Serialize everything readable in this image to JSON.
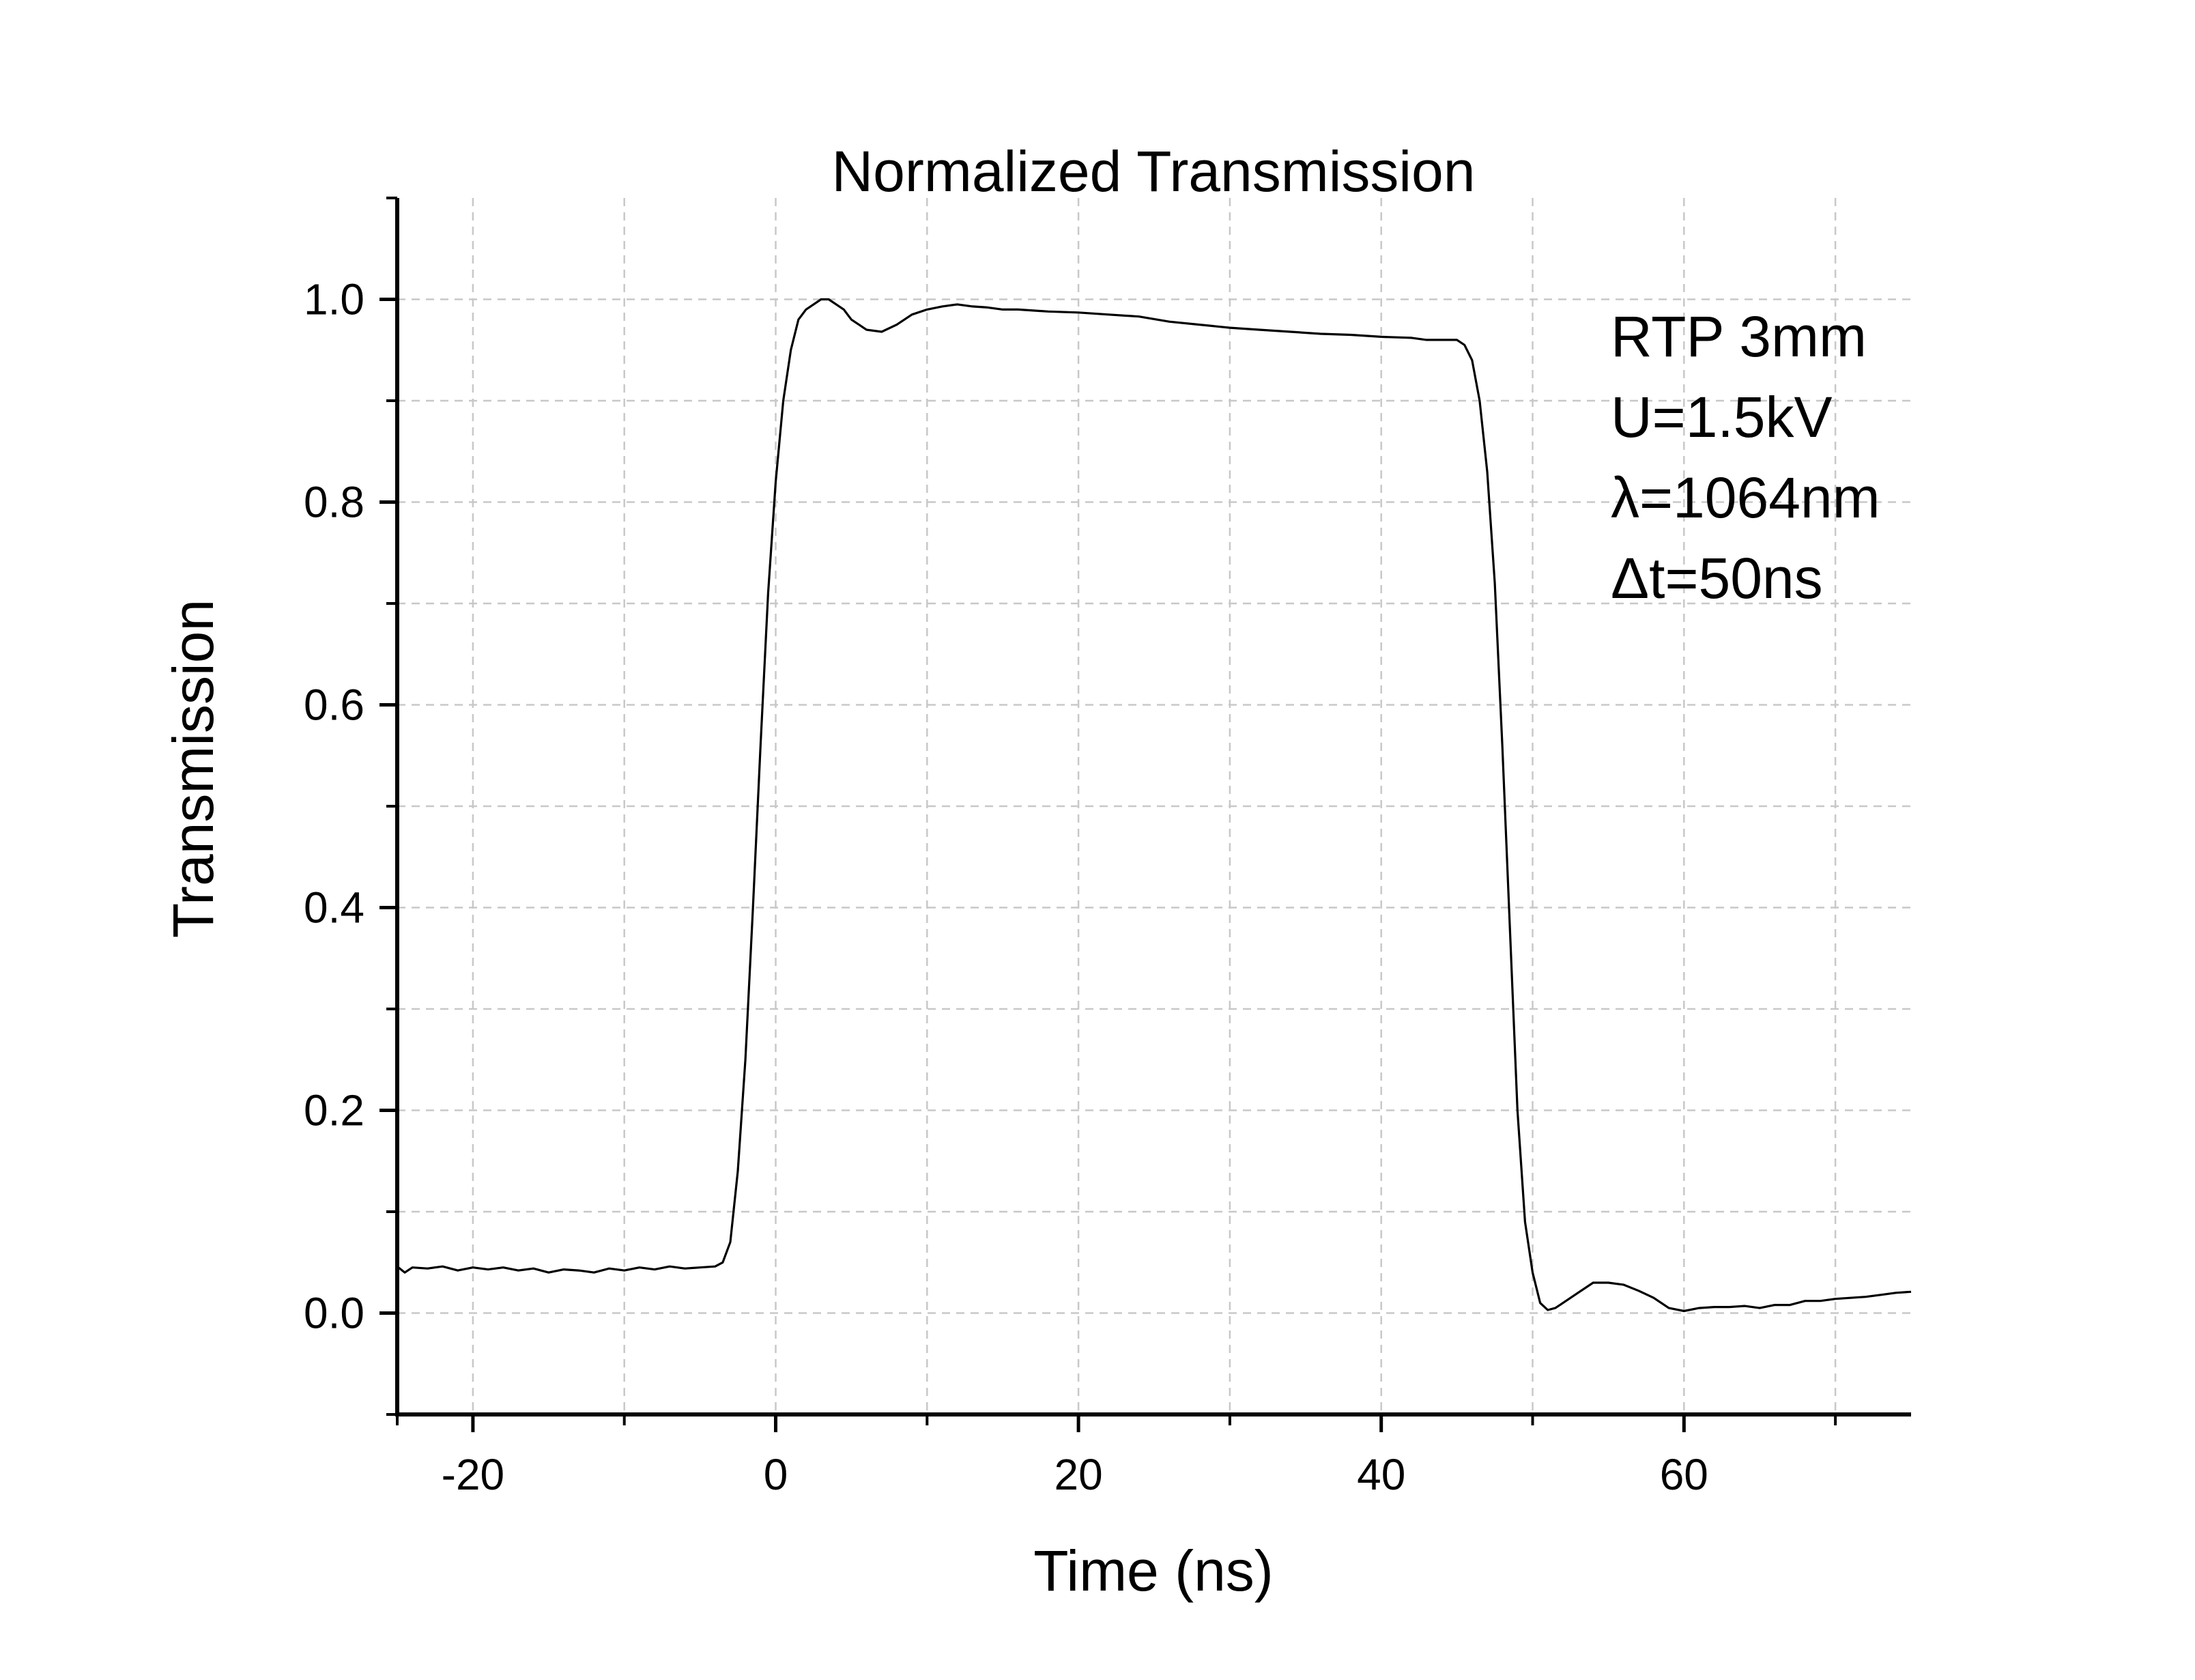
{
  "chart_data": {
    "type": "line",
    "title": "Normalized Transmission",
    "xlabel": "Time (ns)",
    "ylabel": "Transmission",
    "xlim": [
      -25,
      75
    ],
    "ylim": [
      -0.1,
      1.1
    ],
    "x_major_ticks": [
      -20,
      0,
      20,
      40,
      60
    ],
    "x_minor_ticks": [
      -10,
      10,
      30,
      50,
      70
    ],
    "x_tick_labels": [
      "-20",
      "0",
      "20",
      "40",
      "60"
    ],
    "y_major_ticks": [
      0.0,
      0.2,
      0.4,
      0.6,
      0.8,
      1.0
    ],
    "y_minor_ticks": [
      -0.1,
      0.1,
      0.3,
      0.5,
      0.7,
      0.9,
      1.1
    ],
    "y_tick_labels": [
      "0.0",
      "0.2",
      "0.4",
      "0.6",
      "0.8",
      "1.0"
    ],
    "grid": true,
    "line_color": "#000000",
    "annotations": [
      "RTP 3mm",
      "U=1.5kV",
      "λ=1064nm",
      "Δt=50ns"
    ],
    "series": [
      {
        "x": [
          -25,
          -24.5,
          -24,
          -23,
          -22,
          -21,
          -20,
          -19,
          -18,
          -17,
          -16,
          -15,
          -14,
          -13,
          -12,
          -11,
          -10,
          -9,
          -8,
          -7,
          -6,
          -5,
          -4,
          -3.5,
          -3,
          -2.5,
          -2,
          -1.5,
          -1,
          -0.5,
          0,
          0.5,
          1,
          1.5,
          2,
          2.5,
          3,
          3.5,
          4,
          4.5,
          5,
          5.5,
          6,
          7,
          8,
          9,
          10,
          11,
          12,
          13,
          14,
          15,
          16,
          18,
          20,
          22,
          24,
          26,
          28,
          30,
          32,
          34,
          36,
          38,
          40,
          42,
          43,
          44,
          45,
          45.5,
          46,
          46.5,
          47,
          47.5,
          48,
          48.5,
          49,
          49.5,
          50,
          50.5,
          51,
          51.5,
          52,
          53,
          54,
          55,
          56,
          57,
          58,
          59,
          60,
          61,
          62,
          63,
          64,
          65,
          66,
          67,
          68,
          69,
          70,
          71,
          72,
          73,
          74,
          75
        ],
        "y": [
          0.046,
          0.04,
          0.045,
          0.044,
          0.046,
          0.042,
          0.045,
          0.043,
          0.045,
          0.042,
          0.044,
          0.04,
          0.043,
          0.042,
          0.04,
          0.044,
          0.042,
          0.045,
          0.043,
          0.046,
          0.044,
          0.045,
          0.046,
          0.05,
          0.07,
          0.14,
          0.25,
          0.4,
          0.56,
          0.71,
          0.82,
          0.9,
          0.95,
          0.98,
          0.99,
          0.995,
          1.0,
          1.0,
          0.995,
          0.99,
          0.98,
          0.975,
          0.97,
          0.968,
          0.975,
          0.985,
          0.99,
          0.993,
          0.995,
          0.993,
          0.992,
          0.99,
          0.99,
          0.988,
          0.987,
          0.985,
          0.983,
          0.978,
          0.975,
          0.972,
          0.97,
          0.968,
          0.966,
          0.965,
          0.963,
          0.962,
          0.96,
          0.96,
          0.96,
          0.955,
          0.94,
          0.9,
          0.83,
          0.72,
          0.56,
          0.38,
          0.2,
          0.09,
          0.04,
          0.01,
          0.003,
          0.005,
          0.01,
          0.02,
          0.03,
          0.03,
          0.028,
          0.022,
          0.015,
          0.005,
          0.002,
          0.005,
          0.006,
          0.006,
          0.007,
          0.005,
          0.008,
          0.008,
          0.012,
          0.012,
          0.014,
          0.015,
          0.016,
          0.018,
          0.02,
          0.021
        ]
      }
    ]
  }
}
